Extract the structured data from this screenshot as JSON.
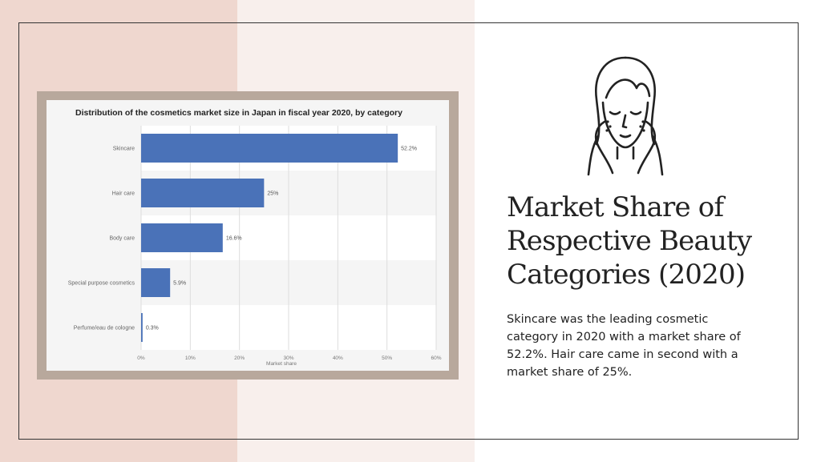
{
  "slide": {
    "heading_lines": [
      "Market Share of",
      "Respective Beauty",
      "Categories (2020)"
    ],
    "description": "Skincare was the leading cosmetic category in 2020 with a market share of 52.2%. Hair care came in second with a market share of 25%.",
    "icon": "woman-skincare-face-icon",
    "colors": {
      "left_panel": "#efd7cf",
      "middle_panel": "#f8efec",
      "chart_frame": "#b8a89c"
    }
  },
  "chart_data": {
    "type": "bar",
    "orientation": "horizontal",
    "title": "Distribution of the cosmetics market size in Japan in fiscal year 2020, by category",
    "categories": [
      "Skincare",
      "Hair care",
      "Body care",
      "Special purpose cosmetics",
      "Perfume/eau de cologne"
    ],
    "values": [
      52.2,
      25,
      16.6,
      5.9,
      0.3
    ],
    "value_labels": [
      "52.2%",
      "25%",
      "16.6%",
      "5.9%",
      "0.3%"
    ],
    "xlabel": "Market share",
    "xticks": [
      "0%",
      "10%",
      "20%",
      "30%",
      "40%",
      "50%",
      "60%"
    ],
    "xlim": [
      0,
      60
    ],
    "grid": true,
    "bar_color": "#4a72b8"
  }
}
